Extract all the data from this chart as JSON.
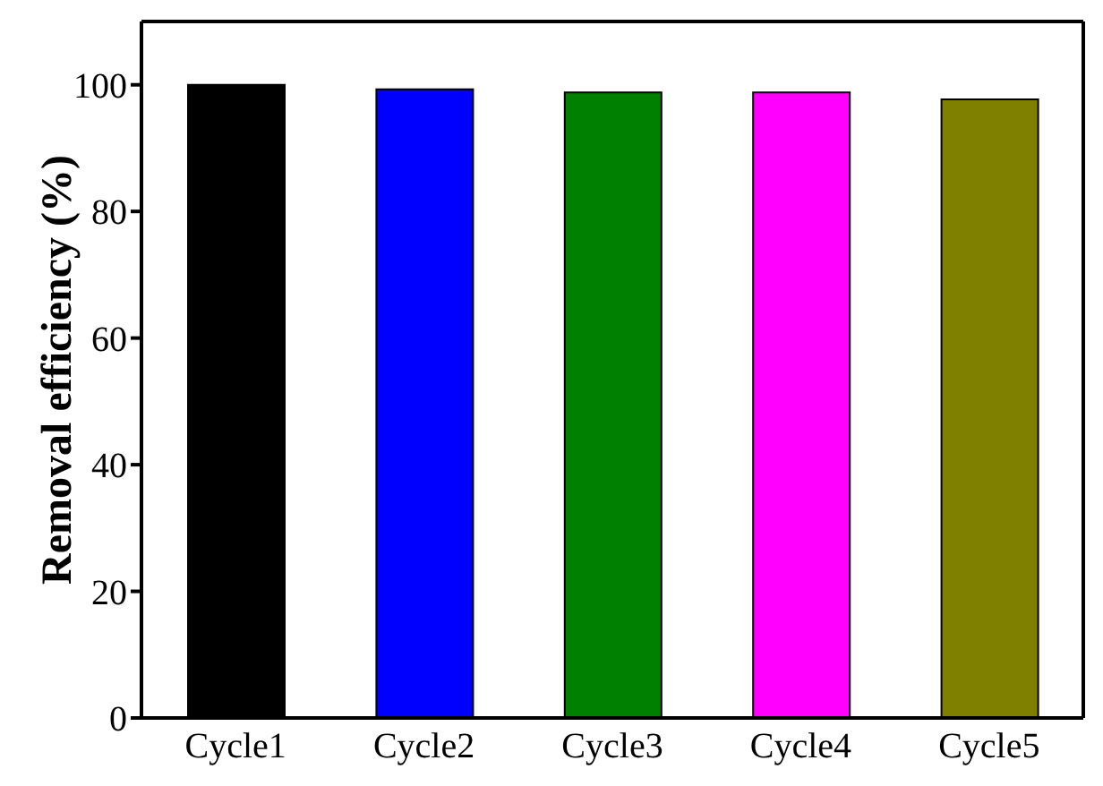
{
  "chart_data": {
    "type": "bar",
    "ylabel": "Removal efficiency (%)",
    "categories": [
      "Cycle1",
      "Cycle2",
      "Cycle3",
      "Cycle4",
      "Cycle5"
    ],
    "values": [
      100,
      99.3,
      98.8,
      98.8,
      97.7
    ],
    "colors": [
      "#000000",
      "#0000ff",
      "#008000",
      "#ff00ff",
      "#808000"
    ],
    "ylim": [
      0,
      110
    ],
    "yticks": [
      0,
      20,
      40,
      60,
      80,
      100
    ],
    "grid": false,
    "legend": false
  }
}
